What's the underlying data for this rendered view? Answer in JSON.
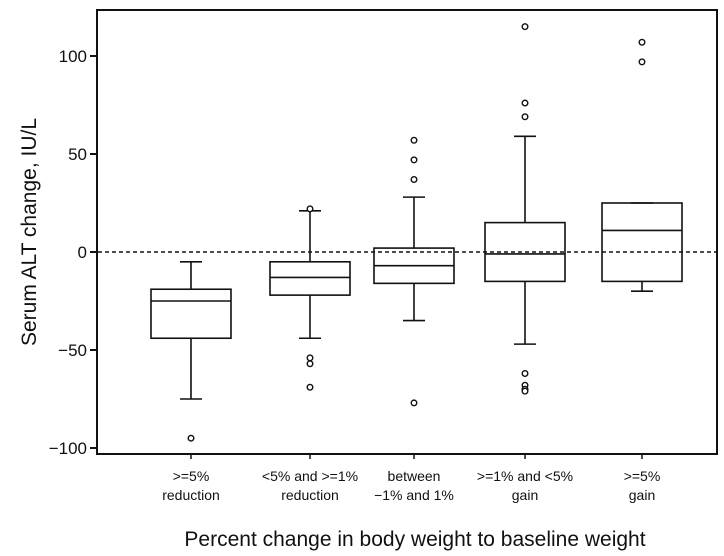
{
  "chart_data": {
    "type": "box",
    "title": "",
    "xlabel": "Percent change in body weight to baseline weight",
    "ylabel": "Serum ALT change, IU/L",
    "ylim": [
      -103,
      124
    ],
    "yticks": [
      -100,
      -50,
      0,
      50,
      100
    ],
    "ytick_labels": [
      "−100",
      "−50",
      "0",
      "50",
      "100"
    ],
    "reference_line": {
      "y": 0,
      "style": "dashed"
    },
    "grid": false,
    "legend": "none",
    "categories": [
      {
        "line1": ">=5%",
        "line2": "reduction"
      },
      {
        "line1": "<5% and >=1%",
        "line2": "reduction"
      },
      {
        "line1": "between",
        "line2": "−1% and 1%"
      },
      {
        "line1": ">=1% and <5%",
        "line2": "gain"
      },
      {
        "line1": ">=5%",
        "line2": "gain"
      }
    ],
    "boxes": [
      {
        "whisker_low": -75,
        "q1": -44,
        "median": -25,
        "q3": -19,
        "whisker_high": -5,
        "outliers": [
          -95
        ]
      },
      {
        "whisker_low": -44,
        "q1": -22,
        "median": -13,
        "q3": -5,
        "whisker_high": 21,
        "outliers": [
          -54,
          -57,
          -69,
          22
        ]
      },
      {
        "whisker_low": -35,
        "q1": -16,
        "median": -7,
        "q3": 2,
        "whisker_high": 28,
        "outliers": [
          -77,
          37,
          47,
          57
        ]
      },
      {
        "whisker_low": -47,
        "q1": -15,
        "median": -1,
        "q3": 15,
        "whisker_high": 59,
        "outliers": [
          -62,
          -68,
          -70,
          -71,
          69,
          76,
          115
        ]
      },
      {
        "whisker_low": -20,
        "q1": -15,
        "median": 11,
        "q3": 25,
        "whisker_high": 25,
        "outliers": [
          97,
          107
        ]
      }
    ]
  }
}
